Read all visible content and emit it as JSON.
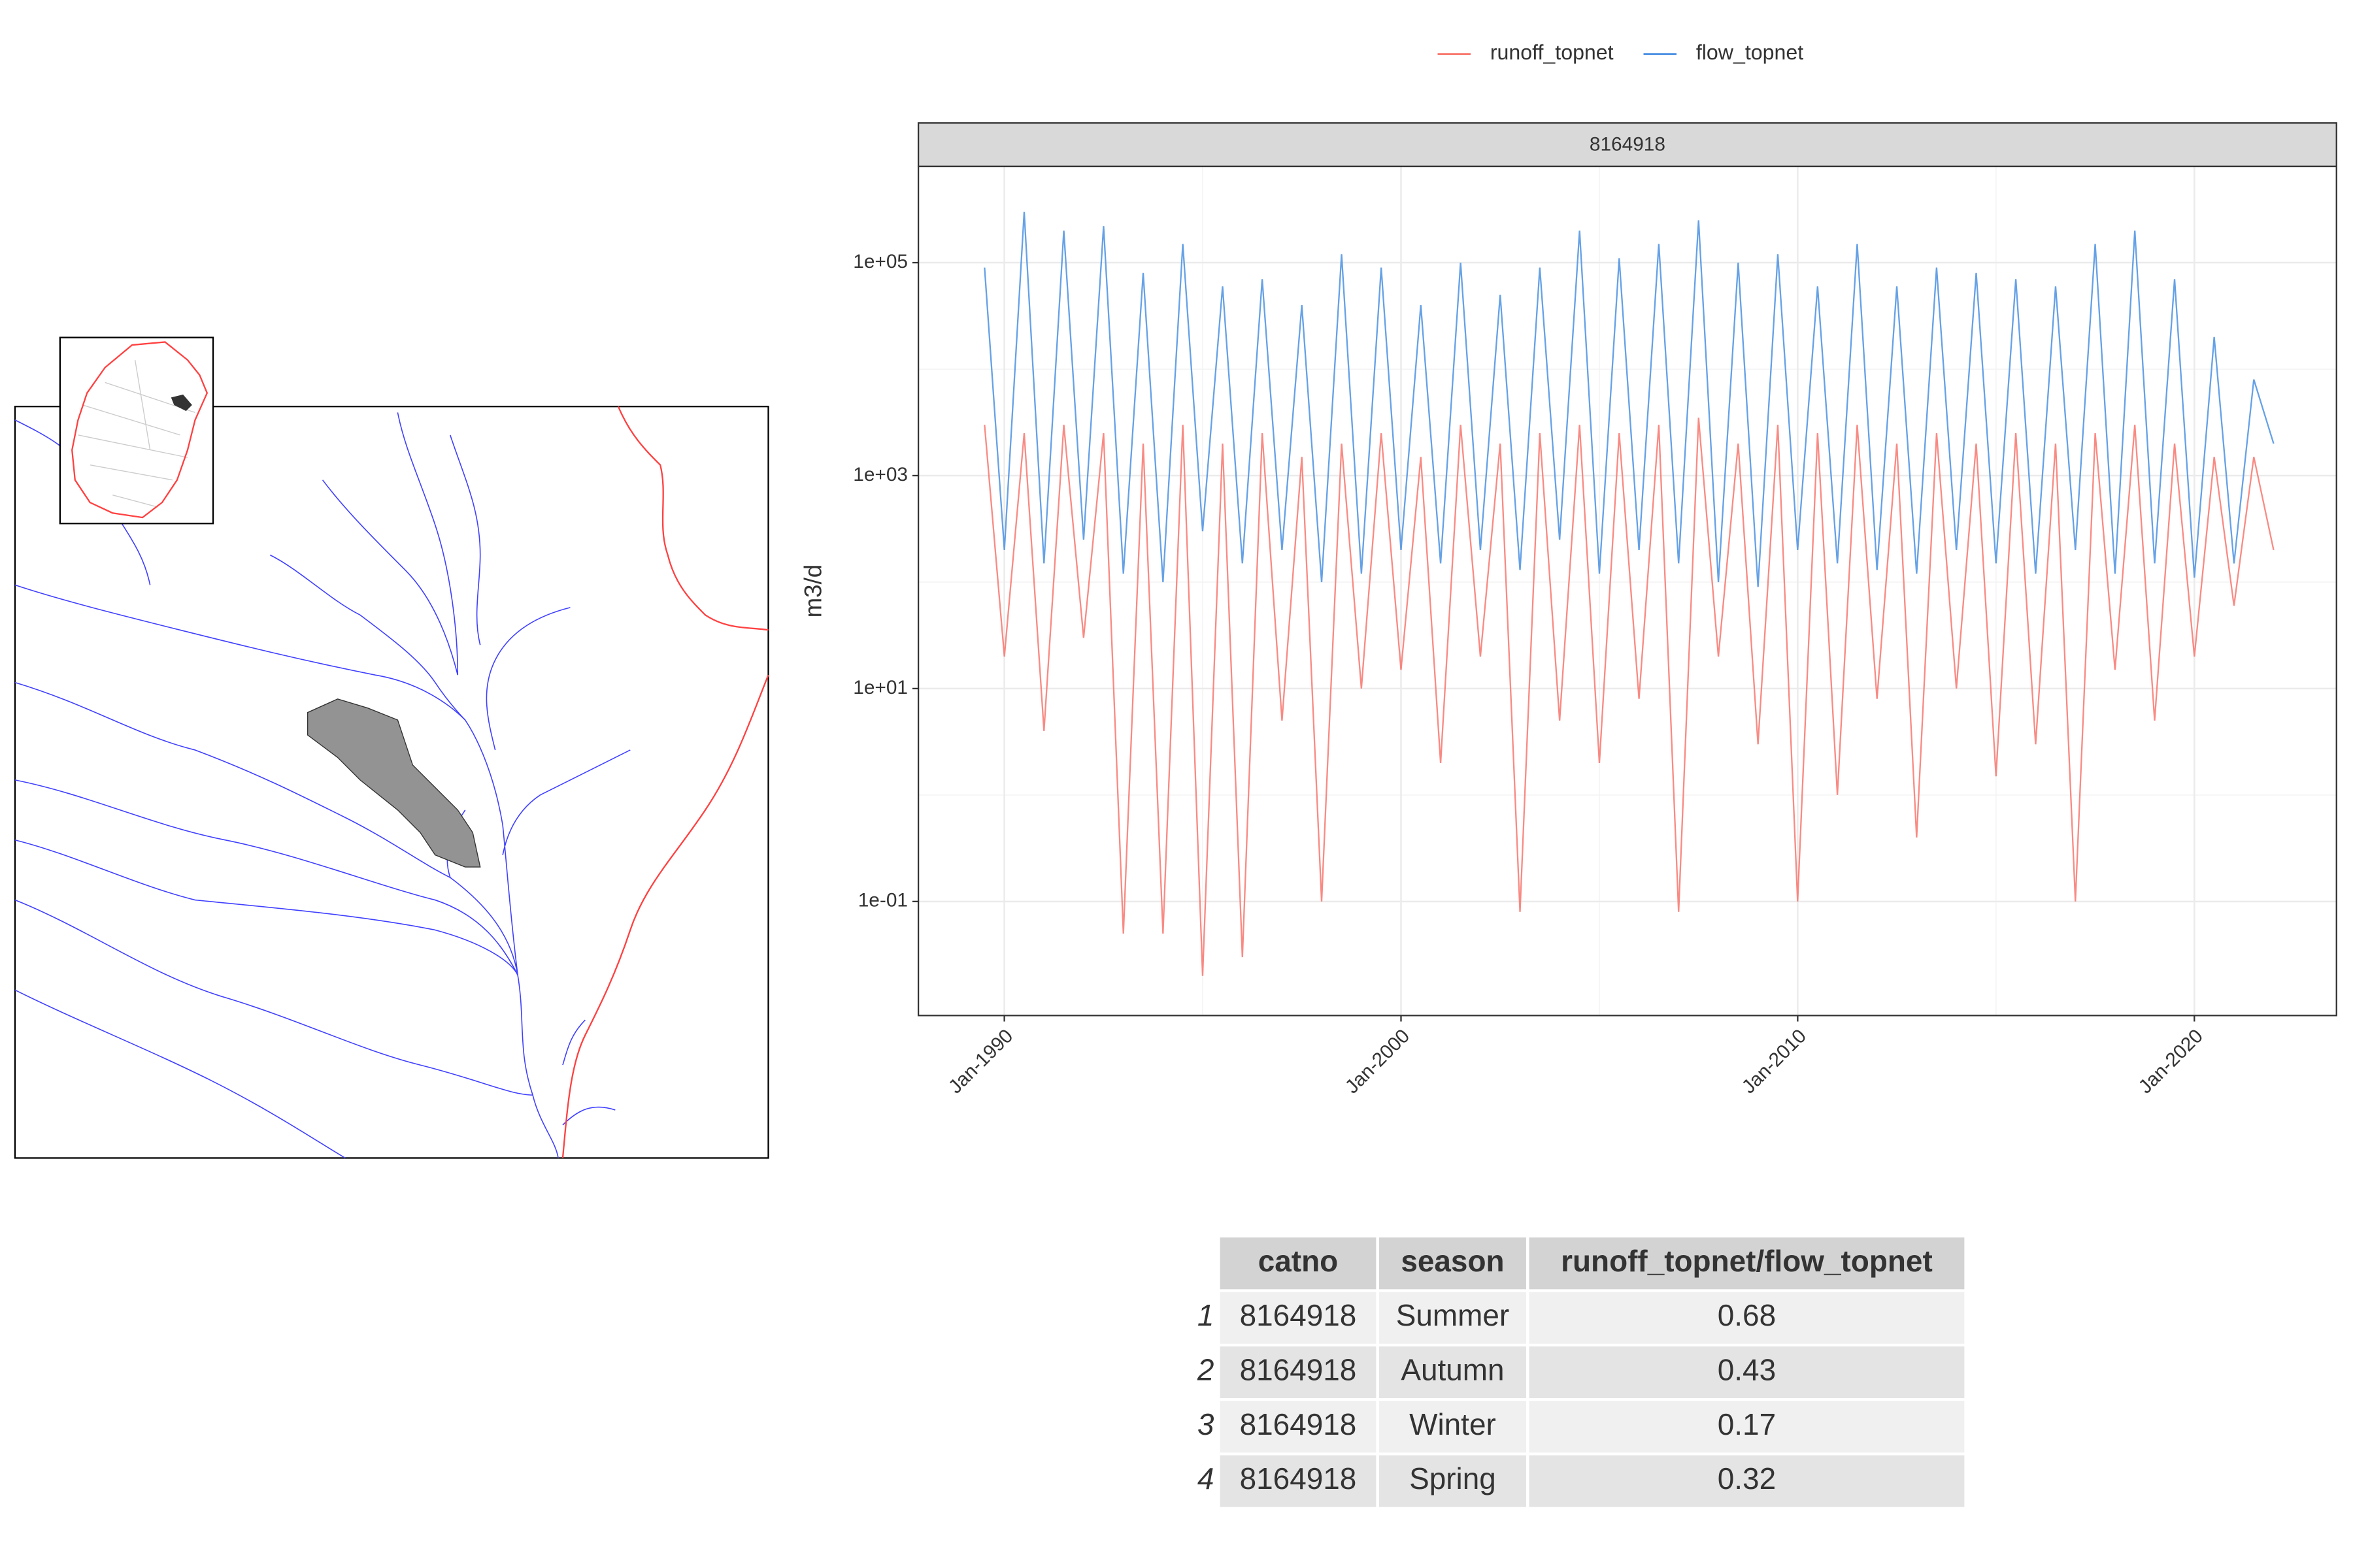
{
  "chart_data": {
    "type": "line",
    "strip_label": "8164918",
    "y_label": "m3/d",
    "log_y": true,
    "grid": true,
    "legend": "top",
    "x": [
      "1989-07",
      "1990-01",
      "1990-07",
      "1991-01",
      "1991-07",
      "1992-01",
      "1992-07",
      "1993-01",
      "1993-07",
      "1994-01",
      "1994-07",
      "1995-01",
      "1995-07",
      "1996-01",
      "1996-07",
      "1997-01",
      "1997-07",
      "1998-01",
      "1998-07",
      "1999-01",
      "1999-07",
      "2000-01",
      "2000-07",
      "2001-01",
      "2001-07",
      "2002-01",
      "2002-07",
      "2003-01",
      "2003-07",
      "2004-01",
      "2004-07",
      "2005-01",
      "2005-07",
      "2006-01",
      "2006-07",
      "2007-01",
      "2007-07",
      "2008-01",
      "2008-07",
      "2009-01",
      "2009-07",
      "2010-01",
      "2010-07",
      "2011-01",
      "2011-07",
      "2012-01",
      "2012-07",
      "2013-01",
      "2013-07",
      "2014-01",
      "2014-07",
      "2015-01",
      "2015-07",
      "2016-01",
      "2016-07",
      "2017-01",
      "2017-07",
      "2018-01",
      "2018-07",
      "2019-01",
      "2019-07",
      "2020-01",
      "2020-07",
      "2021-01",
      "2021-07",
      "2022-01"
    ],
    "series": [
      {
        "name": "runoff_topnet",
        "color": "#f8766d",
        "values": [
          3000,
          20,
          2500,
          4,
          3000,
          30,
          2500,
          0.05,
          2000,
          0.05,
          3000,
          0.02,
          2000,
          0.03,
          2500,
          5,
          1500,
          0.1,
          2000,
          10,
          2500,
          15,
          1500,
          2,
          3000,
          20,
          2000,
          0.08,
          2500,
          5,
          3000,
          2,
          2500,
          8,
          3000,
          0.08,
          3500,
          20,
          2000,
          3,
          3000,
          0.1,
          2500,
          1,
          3000,
          8,
          2000,
          0.4,
          2500,
          10,
          2000,
          1.5,
          2500,
          3,
          2000,
          0.1,
          2500,
          15,
          3000,
          5,
          2000,
          20,
          1500,
          60,
          1500,
          200
        ]
      },
      {
        "name": "flow_topnet",
        "color": "#4a90e2",
        "values": [
          90000,
          200,
          300000,
          150,
          200000,
          250,
          220000,
          120,
          80000,
          100,
          150000,
          300,
          60000,
          150,
          70000,
          200,
          40000,
          100,
          120000,
          120,
          90000,
          200,
          40000,
          150,
          100000,
          200,
          50000,
          130,
          90000,
          250,
          200000,
          120,
          110000,
          200,
          150000,
          150,
          250000,
          100,
          100000,
          90,
          120000,
          200,
          60000,
          150,
          150000,
          130,
          60000,
          120,
          90000,
          200,
          80000,
          150,
          70000,
          120,
          60000,
          200,
          150000,
          120,
          200000,
          150,
          70000,
          110,
          20000,
          150,
          8000,
          2000
        ]
      }
    ],
    "xlim": [
      "1987-11",
      "2023-08"
    ],
    "xticks": [
      {
        "value": "1990-01",
        "label": "Jan-1990"
      },
      {
        "value": "2000-01",
        "label": "Jan-2000"
      },
      {
        "value": "2010-01",
        "label": "Jan-2010"
      },
      {
        "value": "2020-01",
        "label": "Jan-2020"
      }
    ],
    "ylim": [
      0.0085,
      800000
    ],
    "yticks": [
      {
        "value": 100000,
        "label": "1e+05"
      },
      {
        "value": 1000,
        "label": "1e+03"
      },
      {
        "value": 10,
        "label": "1e+01"
      },
      {
        "value": 0.1,
        "label": "1e-01"
      }
    ]
  },
  "table": {
    "columns": [
      "catno",
      "season",
      "runoff_topnet/flow_topnet"
    ],
    "rows": [
      {
        "index": "1",
        "cells": [
          "8164918",
          "Summer",
          "0.68"
        ]
      },
      {
        "index": "2",
        "cells": [
          "8164918",
          "Autumn",
          "0.43"
        ]
      },
      {
        "index": "3",
        "cells": [
          "8164918",
          "Winter",
          "0.17"
        ]
      },
      {
        "index": "4",
        "cells": [
          "8164918",
          "Spring",
          "0.32"
        ]
      }
    ]
  }
}
